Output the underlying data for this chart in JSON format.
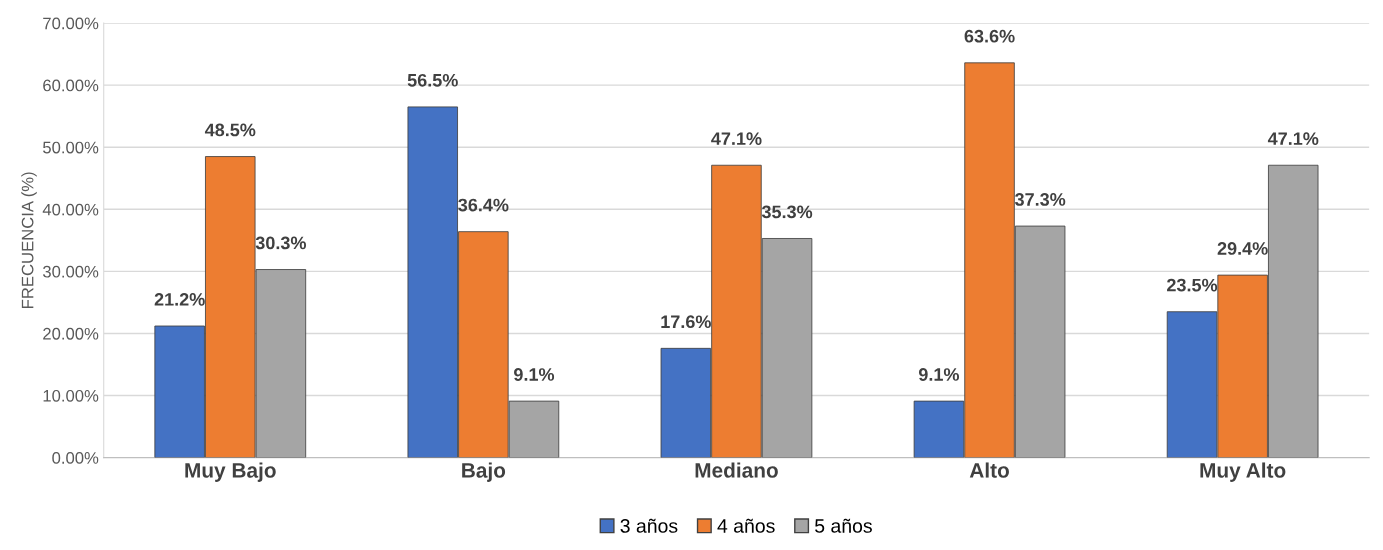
{
  "chart_data": {
    "type": "bar",
    "ylabel": "FRECUENCIA (%)",
    "categories": [
      "Muy Bajo",
      "Bajo",
      "Mediano",
      "Alto",
      "Muy Alto"
    ],
    "series": [
      {
        "name": "3 años",
        "color": "#4472c4",
        "values": [
          21.2,
          56.5,
          17.6,
          9.1,
          23.5
        ],
        "value_labels": [
          "21.2%",
          "56.5%",
          "17.6%",
          "9.1%",
          "23.5%"
        ]
      },
      {
        "name": "4 años",
        "color": "#ed7d31",
        "values": [
          48.5,
          36.4,
          47.1,
          63.6,
          29.4
        ],
        "value_labels": [
          "48.5%",
          "36.4%",
          "47.1%",
          "63.6%",
          "29.4%"
        ]
      },
      {
        "name": "5 años",
        "color": "#a5a5a5",
        "values": [
          30.3,
          9.1,
          35.3,
          37.3,
          47.1
        ],
        "value_labels": [
          "30.3%",
          "9.1%",
          "35.3%",
          "37.3%",
          "47.1%"
        ]
      }
    ],
    "ylim": [
      0,
      70
    ],
    "yticks": [
      {
        "value": 0,
        "label": "0.00%"
      },
      {
        "value": 10,
        "label": "10.00%"
      },
      {
        "value": 20,
        "label": "20.00%"
      },
      {
        "value": 30,
        "label": "30.00%"
      },
      {
        "value": 40,
        "label": "40.00%"
      },
      {
        "value": 50,
        "label": "50.00%"
      },
      {
        "value": 60,
        "label": "60.00%"
      },
      {
        "value": 70,
        "label": "70.00%"
      }
    ],
    "grid": "y",
    "legend": "bottom"
  }
}
